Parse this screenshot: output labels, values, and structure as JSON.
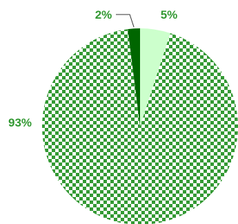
{
  "chart_data": {
    "type": "pie",
    "start_angle_deg": 0,
    "direction": "clockwise",
    "slices": [
      {
        "label": "5%",
        "value": 5,
        "color": "#ccffcc",
        "pattern": "solid",
        "text_color": "#339933"
      },
      {
        "label": "93%",
        "value": 93,
        "color": "#339933",
        "pattern": "checker",
        "pattern_alt_color": "#ffffff",
        "text_color": "#339933"
      },
      {
        "label": "2%",
        "value": 2,
        "color": "#006600",
        "pattern": "solid",
        "text_color": "#339933",
        "leader_line": true
      }
    ],
    "legend": false
  }
}
